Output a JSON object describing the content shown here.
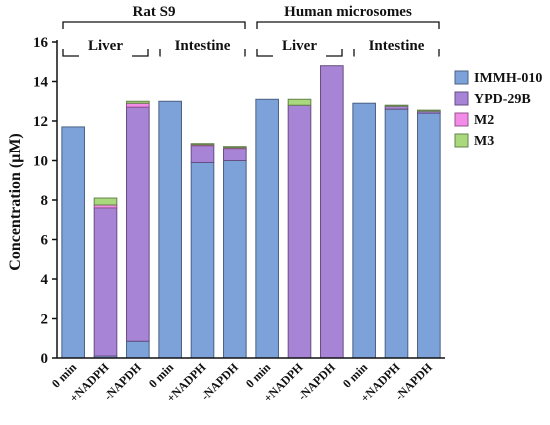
{
  "chart_data": {
    "type": "bar",
    "stacked": true,
    "ylabel": "Concentration (μM)",
    "ylim": [
      0,
      16
    ],
    "yticks": [
      0,
      2,
      4,
      6,
      8,
      10,
      12,
      14,
      16
    ],
    "categories": [
      "0 min",
      "+NADPH",
      "-NAPDH",
      "0 min",
      "+NADPH",
      "-NAPDH",
      "0 min",
      "+NADPH",
      "-NAPDH",
      "0 min",
      "+NADPH",
      "-NAPDH"
    ],
    "series": [
      {
        "name": "IMMH-010",
        "color": "#7ca2d9",
        "values": [
          11.7,
          0.1,
          0.85,
          13.0,
          9.9,
          10.0,
          13.1,
          0,
          0,
          12.9,
          12.6,
          12.4
        ]
      },
      {
        "name": "YPD-29B",
        "color": "#a884d6",
        "values": [
          0,
          7.5,
          11.85,
          0,
          0.85,
          0.6,
          0,
          12.8,
          14.8,
          0,
          0.15,
          0.1
        ]
      },
      {
        "name": "M2",
        "color": "#f28ce8",
        "values": [
          0,
          0.15,
          0.2,
          0,
          0.05,
          0.05,
          0,
          0,
          0,
          0,
          0,
          0
        ]
      },
      {
        "name": "M3",
        "color": "#a9d97c",
        "values": [
          0,
          0.35,
          0.1,
          0,
          0.05,
          0.05,
          0,
          0.3,
          0,
          0,
          0.05,
          0.05
        ]
      }
    ],
    "top_groups": [
      {
        "label": "Rat S9",
        "from": 0,
        "to": 5
      },
      {
        "label": "Human microsomes",
        "from": 6,
        "to": 11
      }
    ],
    "sub_groups": [
      {
        "label": "Liver",
        "from": 0,
        "to": 2
      },
      {
        "label": "Intestine",
        "from": 3,
        "to": 5
      },
      {
        "label": "Liver",
        "from": 6,
        "to": 8
      },
      {
        "label": "Intestine",
        "from": 9,
        "to": 11
      }
    ],
    "legend_position": "right",
    "grid": false
  }
}
